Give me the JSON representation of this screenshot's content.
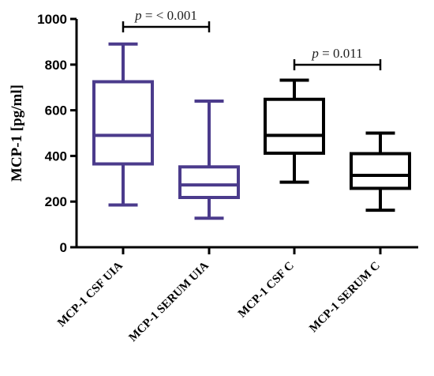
{
  "chart_data": {
    "type": "box",
    "ylabel": "MCP-1 [pg/ml]",
    "ylim": [
      0,
      1000
    ],
    "yticks": [
      0,
      200,
      400,
      600,
      800,
      1000
    ],
    "grid": false,
    "categories": [
      "MCP-1 CSF UIA",
      "MCP-1 SERUM UIA",
      "MCP-1 CSF C",
      "MCP-1 SERUM C"
    ],
    "boxes": [
      {
        "category": "MCP-1 CSF UIA",
        "min": 185,
        "q1": 365,
        "median": 490,
        "q3": 725,
        "max": 890,
        "color": "#4b3b8c"
      },
      {
        "category": "MCP-1 SERUM UIA",
        "min": 127,
        "q1": 218,
        "median": 273,
        "q3": 352,
        "max": 640,
        "color": "#4b3b8c"
      },
      {
        "category": "MCP-1 CSF C",
        "min": 285,
        "q1": 412,
        "median": 490,
        "q3": 648,
        "max": 732,
        "color": "#000000"
      },
      {
        "category": "MCP-1 SERUM C",
        "min": 162,
        "q1": 258,
        "median": 315,
        "q3": 410,
        "max": 500,
        "color": "#000000"
      }
    ],
    "annotations": [
      {
        "text_prefix": "p",
        "text_rest": " = < 0.001",
        "from": 0,
        "to": 1
      },
      {
        "text_prefix": "p",
        "text_rest": " = 0.011",
        "from": 2,
        "to": 3
      }
    ]
  }
}
